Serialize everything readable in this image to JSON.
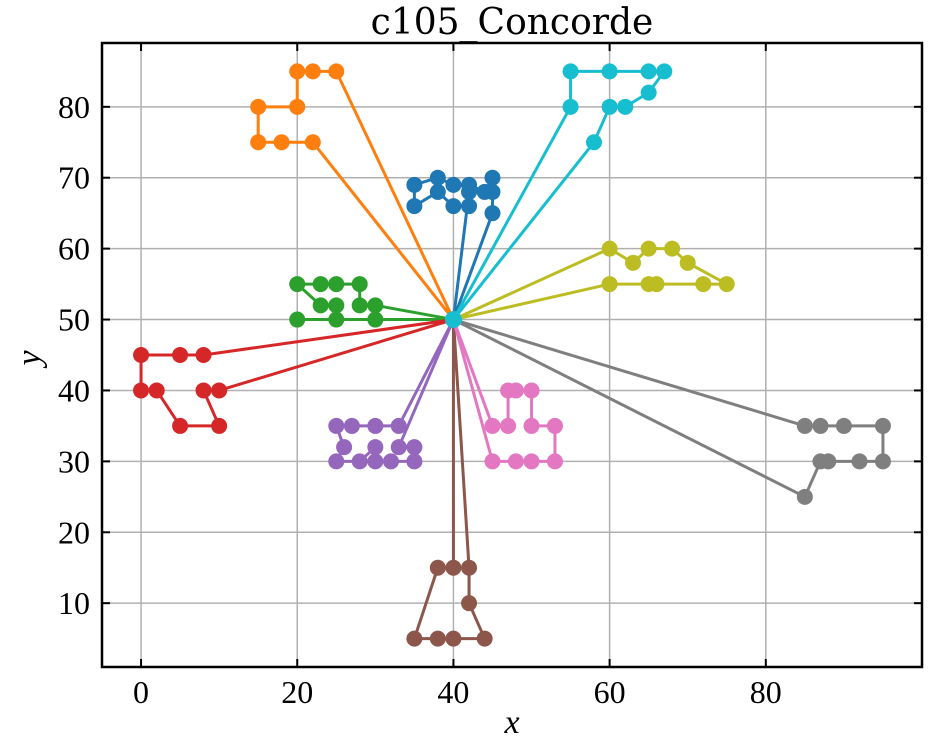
{
  "chart_data": {
    "type": "line",
    "title": "c105_Concorde",
    "xlabel": "x",
    "ylabel": "y",
    "xlim": [
      -5,
      100
    ],
    "ylim": [
      1,
      89
    ],
    "xticks": [
      0,
      20,
      40,
      60,
      80
    ],
    "yticks": [
      10,
      20,
      30,
      40,
      50,
      60,
      70,
      80
    ],
    "grid": true,
    "depot": {
      "x": 40,
      "y": 50,
      "color": "#17becf"
    },
    "series": [
      {
        "color": "#1f77b4",
        "points": [
          [
            40,
            50
          ],
          [
            42,
            68
          ],
          [
            42,
            66
          ],
          [
            40,
            66
          ],
          [
            38,
            68
          ],
          [
            35,
            66
          ],
          [
            35,
            69
          ],
          [
            38,
            70
          ],
          [
            40,
            69
          ],
          [
            42,
            69
          ],
          [
            44,
            68
          ],
          [
            45,
            70
          ],
          [
            45,
            68
          ],
          [
            45,
            65
          ],
          [
            40,
            50
          ]
        ]
      },
      {
        "color": "#ff7f0e",
        "points": [
          [
            40,
            50
          ],
          [
            25,
            85
          ],
          [
            22,
            85
          ],
          [
            20,
            85
          ],
          [
            20,
            80
          ],
          [
            15,
            80
          ],
          [
            15,
            75
          ],
          [
            18,
            75
          ],
          [
            22,
            75
          ],
          [
            40,
            50
          ]
        ]
      },
      {
        "color": "#2ca02c",
        "points": [
          [
            40,
            50
          ],
          [
            30,
            52
          ],
          [
            28,
            52
          ],
          [
            28,
            55
          ],
          [
            25,
            55
          ],
          [
            23,
            55
          ],
          [
            20,
            55
          ],
          [
            23,
            52
          ],
          [
            25,
            52
          ],
          [
            25,
            50
          ],
          [
            20,
            50
          ],
          [
            30,
            50
          ],
          [
            40,
            50
          ]
        ]
      },
      {
        "color": "#d62728",
        "points": [
          [
            40,
            50
          ],
          [
            8,
            45
          ],
          [
            5,
            45
          ],
          [
            0,
            45
          ],
          [
            0,
            40
          ],
          [
            2,
            40
          ],
          [
            5,
            35
          ],
          [
            10,
            35
          ],
          [
            8,
            40
          ],
          [
            10,
            40
          ],
          [
            40,
            50
          ]
        ]
      },
      {
        "color": "#9467bd",
        "points": [
          [
            40,
            50
          ],
          [
            33,
            35
          ],
          [
            30,
            35
          ],
          [
            27,
            35
          ],
          [
            25,
            35
          ],
          [
            26,
            32
          ],
          [
            25,
            30
          ],
          [
            28,
            30
          ],
          [
            30,
            32
          ],
          [
            30,
            30
          ],
          [
            32,
            30
          ],
          [
            35,
            30
          ],
          [
            35,
            32
          ],
          [
            33,
            32
          ],
          [
            40,
            50
          ]
        ]
      },
      {
        "color": "#8c564b",
        "points": [
          [
            40,
            50
          ],
          [
            40,
            15
          ],
          [
            38,
            15
          ],
          [
            35,
            5
          ],
          [
            38,
            5
          ],
          [
            40,
            5
          ],
          [
            44,
            5
          ],
          [
            42,
            10
          ],
          [
            42,
            15
          ],
          [
            40,
            50
          ]
        ]
      },
      {
        "color": "#e377c2",
        "points": [
          [
            40,
            50
          ],
          [
            45,
            35
          ],
          [
            47,
            35
          ],
          [
            47,
            40
          ],
          [
            48,
            40
          ],
          [
            50,
            40
          ],
          [
            50,
            35
          ],
          [
            53,
            35
          ],
          [
            53,
            30
          ],
          [
            50,
            30
          ],
          [
            48,
            30
          ],
          [
            45,
            30
          ],
          [
            40,
            50
          ]
        ]
      },
      {
        "color": "#7f7f7f",
        "points": [
          [
            40,
            50
          ],
          [
            85,
            35
          ],
          [
            87,
            35
          ],
          [
            90,
            35
          ],
          [
            95,
            35
          ],
          [
            95,
            30
          ],
          [
            92,
            30
          ],
          [
            88,
            30
          ],
          [
            87,
            30
          ],
          [
            85,
            25
          ],
          [
            40,
            50
          ]
        ]
      },
      {
        "color": "#bcbd22",
        "points": [
          [
            40,
            50
          ],
          [
            60,
            55
          ],
          [
            65,
            55
          ],
          [
            66,
            55
          ],
          [
            72,
            55
          ],
          [
            75,
            55
          ],
          [
            70,
            58
          ],
          [
            68,
            60
          ],
          [
            65,
            60
          ],
          [
            63,
            58
          ],
          [
            60,
            60
          ],
          [
            40,
            50
          ]
        ]
      },
      {
        "color": "#17becf",
        "points": [
          [
            40,
            50
          ],
          [
            58,
            75
          ],
          [
            60,
            80
          ],
          [
            62,
            80
          ],
          [
            65,
            82
          ],
          [
            67,
            85
          ],
          [
            65,
            85
          ],
          [
            60,
            85
          ],
          [
            55,
            85
          ],
          [
            55,
            80
          ],
          [
            40,
            50
          ]
        ]
      }
    ]
  }
}
